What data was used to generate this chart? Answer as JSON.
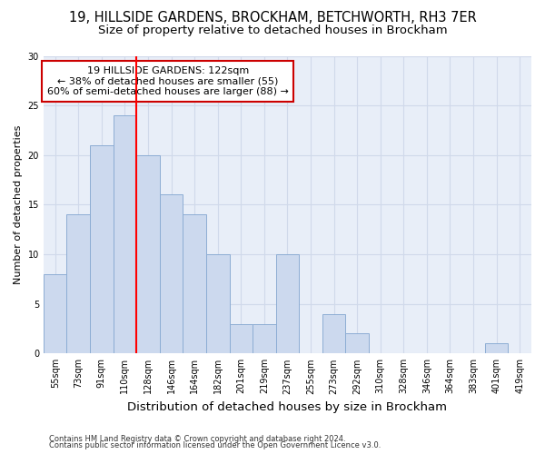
{
  "title1": "19, HILLSIDE GARDENS, BROCKHAM, BETCHWORTH, RH3 7ER",
  "title2": "Size of property relative to detached houses in Brockham",
  "xlabel": "Distribution of detached houses by size in Brockham",
  "ylabel": "Number of detached properties",
  "categories": [
    "55sqm",
    "73sqm",
    "91sqm",
    "110sqm",
    "128sqm",
    "146sqm",
    "164sqm",
    "182sqm",
    "201sqm",
    "219sqm",
    "237sqm",
    "255sqm",
    "273sqm",
    "292sqm",
    "310sqm",
    "328sqm",
    "346sqm",
    "364sqm",
    "383sqm",
    "401sqm",
    "419sqm"
  ],
  "values": [
    8,
    14,
    21,
    24,
    20,
    16,
    14,
    10,
    3,
    3,
    10,
    0,
    4,
    2,
    0,
    0,
    0,
    0,
    0,
    1,
    0
  ],
  "bar_color": "#ccd9ee",
  "bar_edge_color": "#8dadd4",
  "red_line_index": 3.5,
  "annotation_title": "19 HILLSIDE GARDENS: 122sqm",
  "annotation_line1": "← 38% of detached houses are smaller (55)",
  "annotation_line2": "60% of semi-detached houses are larger (88) →",
  "annotation_box_color": "#ffffff",
  "annotation_box_edge": "#cc0000",
  "ylim": [
    0,
    30
  ],
  "yticks": [
    0,
    5,
    10,
    15,
    20,
    25,
    30
  ],
  "footer1": "Contains HM Land Registry data © Crown copyright and database right 2024.",
  "footer2": "Contains public sector information licensed under the Open Government Licence v3.0.",
  "grid_color": "#d0d9ea",
  "bg_color": "#e8eef8",
  "title1_fontsize": 10.5,
  "title2_fontsize": 9.5,
  "xlabel_fontsize": 9.5,
  "ylabel_fontsize": 8,
  "tick_fontsize": 7,
  "annot_fontsize": 8,
  "footer_fontsize": 6
}
